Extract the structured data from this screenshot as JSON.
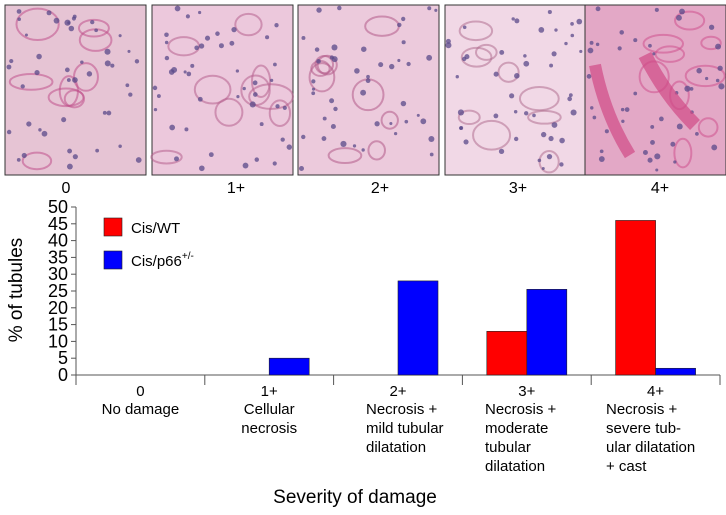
{
  "panels": [
    {
      "label": "0",
      "bg": "#e6c4d4",
      "accent": "#c0508a"
    },
    {
      "label": "1+",
      "bg": "#ecc8dc",
      "accent": "#b6608e"
    },
    {
      "label": "2+",
      "bg": "#eccadc",
      "accent": "#b25a88"
    },
    {
      "label": "3+",
      "bg": "#f1d8e6",
      "accent": "#b0708f"
    },
    {
      "label": "4+",
      "bg": "#e3a8c6",
      "accent": "#d0508e"
    }
  ],
  "chart_data": {
    "type": "bar",
    "categories": [
      "0",
      "1+",
      "2+",
      "3+",
      "4+"
    ],
    "category_descriptions": [
      [
        "No damage"
      ],
      [
        "Cellular",
        "necrosis"
      ],
      [
        "Necrosis +",
        "mild tubular",
        "dilatation"
      ],
      [
        "Necrosis +",
        "moderate",
        "tubular",
        "dilatation"
      ],
      [
        "Necrosis +",
        "severe tub-",
        "ular dilatation",
        "+ cast"
      ]
    ],
    "series": [
      {
        "name": "Cis/WT",
        "name_sup": "",
        "color": "#ff0000",
        "values": [
          0,
          0,
          0,
          13,
          46
        ]
      },
      {
        "name": "Cis/p66",
        "name_sup": "+/-",
        "color": "#0000ff",
        "values": [
          0,
          5,
          28,
          25.5,
          2
        ]
      }
    ],
    "xlabel": "Severity of damage",
    "ylabel": "% of tubules",
    "ylim": [
      0,
      50
    ],
    "yticks": [
      0,
      5,
      10,
      15,
      20,
      25,
      30,
      35,
      40,
      45,
      50
    ],
    "legend_position": "top-left",
    "grid": false
  }
}
